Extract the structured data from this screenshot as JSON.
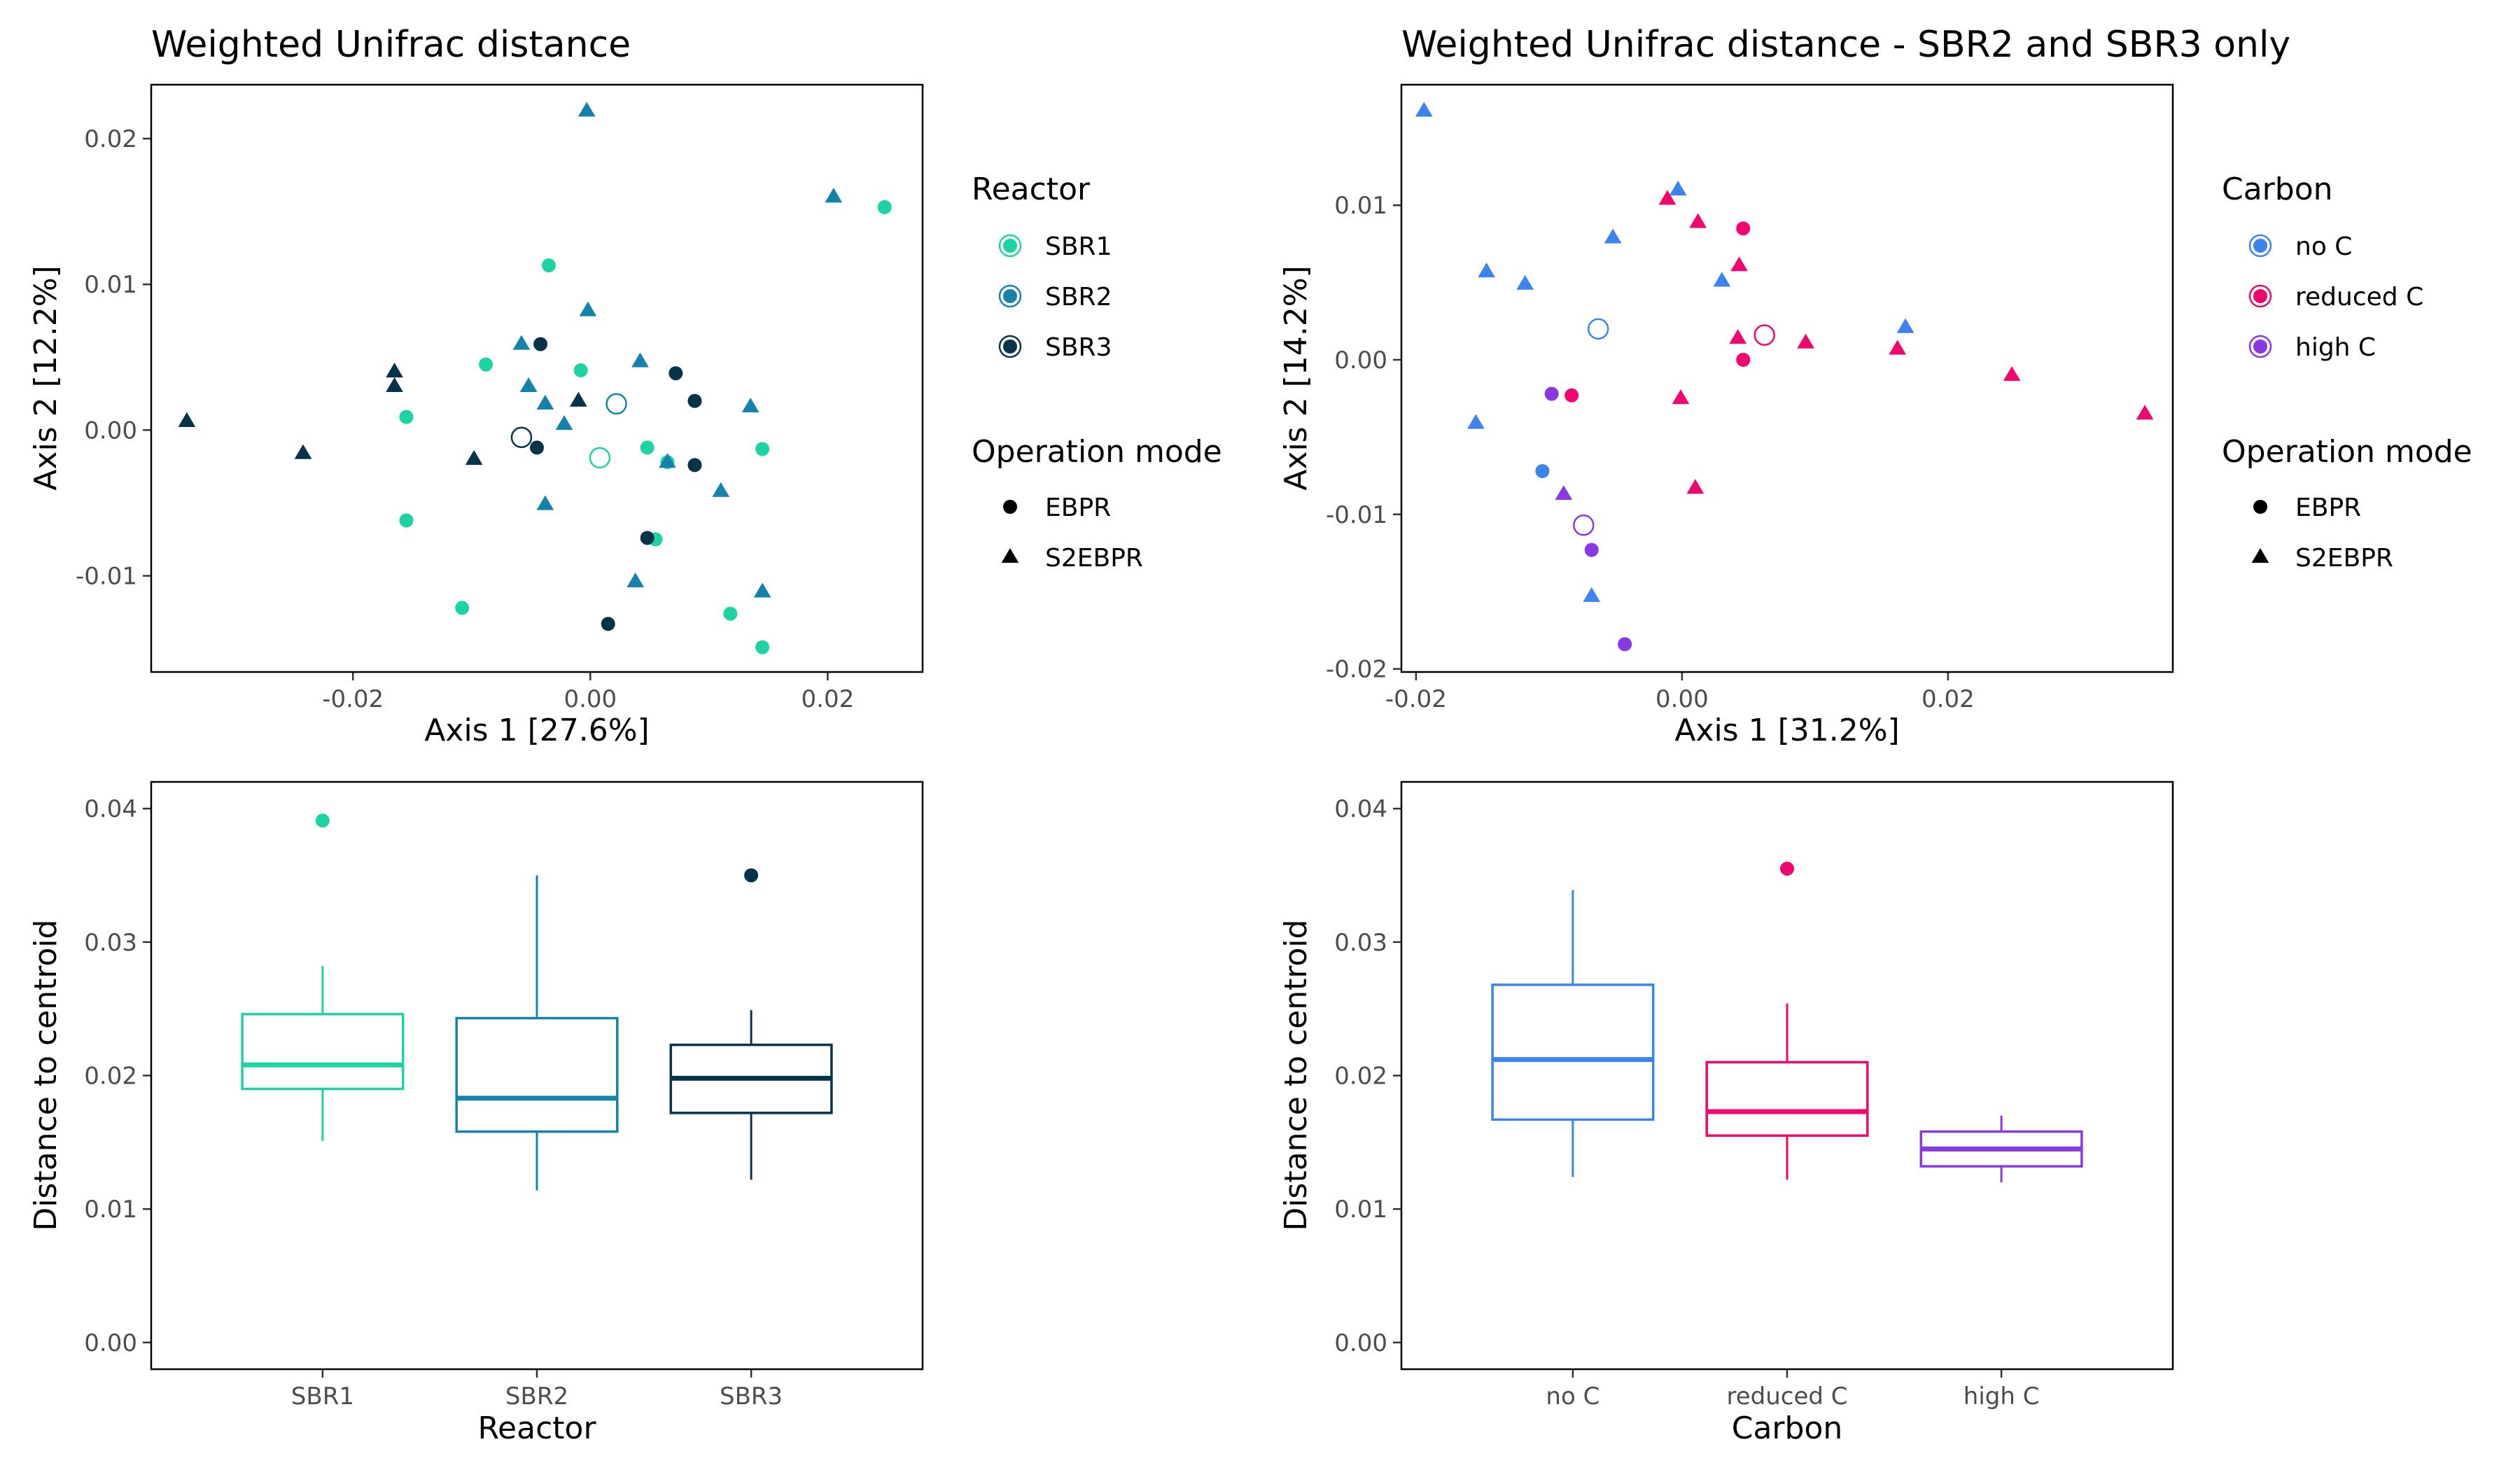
{
  "colors": {
    "SBR1": "#1ed3a3",
    "SBR2": "#1582ab",
    "SBR3": "#06334a",
    "no C": "#3b84ee",
    "reduced C": "#f1056f",
    "high C": "#8a38e2",
    "axis": "#000000",
    "tick_text": "#4d4d4d"
  },
  "chart_data": [
    {
      "type": "scatter",
      "title": "Weighted Unifrac distance",
      "xlabel": "Axis 1 [27.6%]",
      "ylabel": "Axis 2 [12.2%]",
      "xlim": [
        -0.037,
        0.028
      ],
      "ylim": [
        -0.0166,
        0.0237
      ],
      "xticks": [
        -0.02,
        0.0,
        0.02
      ],
      "xtick_labels": [
        "-0.02",
        "0.00",
        "0.02"
      ],
      "yticks": [
        -0.01,
        0.0,
        0.01,
        0.02
      ],
      "ytick_labels": [
        "-0.01",
        "0.00",
        "0.01",
        "0.02"
      ],
      "color_legend": {
        "title": "Reactor",
        "entries": [
          "SBR1",
          "SBR2",
          "SBR3"
        ]
      },
      "shape_legend": {
        "title": "Operation mode",
        "entries": [
          "EBPR",
          "S2EBPR"
        ],
        "shapes": [
          "circle",
          "triangle"
        ]
      },
      "series": [
        {
          "name": "SBR1",
          "color_key": "SBR1",
          "points": [
            {
              "x": -0.0035,
              "y": 0.0113,
              "m": "EBPR"
            },
            {
              "x": -0.0088,
              "y": 0.0045,
              "m": "EBPR"
            },
            {
              "x": -0.0155,
              "y": 0.0009,
              "m": "EBPR"
            },
            {
              "x": -0.0155,
              "y": -0.0062,
              "m": "EBPR"
            },
            {
              "x": -0.0108,
              "y": -0.0122,
              "m": "EBPR"
            },
            {
              "x": -0.0008,
              "y": 0.0041,
              "m": "EBPR"
            },
            {
              "x": 0.0048,
              "y": -0.0012,
              "m": "EBPR"
            },
            {
              "x": 0.0065,
              "y": -0.0022,
              "m": "EBPR"
            },
            {
              "x": 0.0055,
              "y": -0.0075,
              "m": "EBPR"
            },
            {
              "x": 0.0145,
              "y": -0.0013,
              "m": "EBPR"
            },
            {
              "x": 0.0118,
              "y": -0.0126,
              "m": "EBPR"
            },
            {
              "x": 0.0145,
              "y": -0.0149,
              "m": "EBPR"
            },
            {
              "x": 0.0248,
              "y": 0.0153,
              "m": "EBPR"
            }
          ],
          "centroid": {
            "x": 0.0008,
            "y": -0.0019
          }
        },
        {
          "name": "SBR2",
          "color_key": "SBR2",
          "points": [
            {
              "x": -0.0003,
              "y": 0.0219,
              "m": "S2EBPR"
            },
            {
              "x": 0.0205,
              "y": 0.016,
              "m": "S2EBPR"
            },
            {
              "x": -0.0002,
              "y": 0.0082,
              "m": "S2EBPR"
            },
            {
              "x": -0.0058,
              "y": 0.0059,
              "m": "S2EBPR"
            },
            {
              "x": 0.0042,
              "y": 0.0047,
              "m": "S2EBPR"
            },
            {
              "x": -0.0052,
              "y": 0.003,
              "m": "S2EBPR"
            },
            {
              "x": -0.0038,
              "y": 0.0018,
              "m": "S2EBPR"
            },
            {
              "x": -0.0022,
              "y": 0.0004,
              "m": "S2EBPR"
            },
            {
              "x": 0.0135,
              "y": 0.0016,
              "m": "S2EBPR"
            },
            {
              "x": 0.0065,
              "y": -0.0022,
              "m": "S2EBPR"
            },
            {
              "x": 0.011,
              "y": -0.0042,
              "m": "S2EBPR"
            },
            {
              "x": -0.0038,
              "y": -0.0051,
              "m": "S2EBPR"
            },
            {
              "x": 0.0038,
              "y": -0.0104,
              "m": "S2EBPR"
            },
            {
              "x": 0.0145,
              "y": -0.0111,
              "m": "S2EBPR"
            }
          ],
          "centroid": {
            "x": 0.0022,
            "y": 0.0018
          }
        },
        {
          "name": "SBR3",
          "color_key": "SBR3",
          "points": [
            {
              "x": -0.0042,
              "y": 0.0059,
              "m": "EBPR"
            },
            {
              "x": 0.0072,
              "y": 0.0039,
              "m": "EBPR"
            },
            {
              "x": 0.0088,
              "y": 0.002,
              "m": "EBPR"
            },
            {
              "x": -0.0045,
              "y": -0.0012,
              "m": "EBPR"
            },
            {
              "x": 0.0088,
              "y": -0.0024,
              "m": "EBPR"
            },
            {
              "x": 0.0048,
              "y": -0.0074,
              "m": "EBPR"
            },
            {
              "x": 0.0015,
              "y": -0.0133,
              "m": "EBPR"
            },
            {
              "x": -0.0165,
              "y": 0.004,
              "m": "S2EBPR"
            },
            {
              "x": -0.0165,
              "y": 0.003,
              "m": "S2EBPR"
            },
            {
              "x": -0.001,
              "y": 0.002,
              "m": "S2EBPR"
            },
            {
              "x": -0.034,
              "y": 0.0006,
              "m": "S2EBPR"
            },
            {
              "x": -0.0242,
              "y": -0.0016,
              "m": "S2EBPR"
            },
            {
              "x": -0.0098,
              "y": -0.002,
              "m": "S2EBPR"
            }
          ],
          "centroid": {
            "x": -0.0058,
            "y": -0.0005
          }
        }
      ]
    },
    {
      "type": "scatter",
      "title": "Weighted Unifrac distance - SBR2 and SBR3 only",
      "xlabel": "Axis 1 [31.2%]",
      "ylabel": "Axis 2 [14.2%]",
      "xlim": [
        -0.0211,
        0.0369
      ],
      "ylim": [
        -0.0202,
        0.0178
      ],
      "xticks": [
        -0.02,
        0.0,
        0.02
      ],
      "xtick_labels": [
        "-0.02",
        "0.00",
        "0.02"
      ],
      "yticks": [
        -0.02,
        -0.01,
        0.0,
        0.01
      ],
      "ytick_labels": [
        "-0.02",
        "-0.01",
        "0.00",
        "0.01"
      ],
      "color_legend": {
        "title": "Carbon",
        "entries": [
          "no C",
          "reduced C",
          "high C"
        ]
      },
      "shape_legend": {
        "title": "Operation mode",
        "entries": [
          "EBPR",
          "S2EBPR"
        ],
        "shapes": [
          "circle",
          "triangle"
        ]
      },
      "series": [
        {
          "name": "no C",
          "color_key": "no C",
          "points": [
            {
              "x": -0.0194,
              "y": 0.0161,
              "m": "S2EBPR"
            },
            {
              "x": -0.0003,
              "y": 0.011,
              "m": "S2EBPR"
            },
            {
              "x": -0.0052,
              "y": 0.0079,
              "m": "S2EBPR"
            },
            {
              "x": -0.0147,
              "y": 0.0057,
              "m": "S2EBPR"
            },
            {
              "x": -0.0118,
              "y": 0.0049,
              "m": "S2EBPR"
            },
            {
              "x": 0.003,
              "y": 0.0051,
              "m": "S2EBPR"
            },
            {
              "x": 0.0168,
              "y": 0.0021,
              "m": "S2EBPR"
            },
            {
              "x": -0.0155,
              "y": -0.0041,
              "m": "S2EBPR"
            },
            {
              "x": -0.0068,
              "y": -0.0153,
              "m": "S2EBPR"
            },
            {
              "x": -0.0105,
              "y": -0.0072,
              "m": "EBPR"
            }
          ],
          "centroid": {
            "x": -0.0063,
            "y": 0.002
          }
        },
        {
          "name": "reduced C",
          "color_key": "reduced C",
          "points": [
            {
              "x": -0.0011,
              "y": 0.0104,
              "m": "S2EBPR"
            },
            {
              "x": 0.0012,
              "y": 0.0089,
              "m": "S2EBPR"
            },
            {
              "x": 0.0043,
              "y": 0.0061,
              "m": "S2EBPR"
            },
            {
              "x": 0.0042,
              "y": 0.0014,
              "m": "S2EBPR"
            },
            {
              "x": 0.0093,
              "y": 0.0011,
              "m": "S2EBPR"
            },
            {
              "x": 0.0162,
              "y": 0.0007,
              "m": "S2EBPR"
            },
            {
              "x": 0.0248,
              "y": -0.001,
              "m": "S2EBPR"
            },
            {
              "x": 0.0348,
              "y": -0.0035,
              "m": "S2EBPR"
            },
            {
              "x": -0.0001,
              "y": -0.0025,
              "m": "S2EBPR"
            },
            {
              "x": 0.001,
              "y": -0.0083,
              "m": "S2EBPR"
            },
            {
              "x": 0.0046,
              "y": 0.0085,
              "m": "EBPR"
            },
            {
              "x": 0.0046,
              "y": 0.0,
              "m": "EBPR"
            },
            {
              "x": -0.0083,
              "y": -0.0023,
              "m": "EBPR"
            }
          ],
          "centroid": {
            "x": 0.0062,
            "y": 0.0016
          }
        },
        {
          "name": "high C",
          "color_key": "high C",
          "points": [
            {
              "x": -0.0098,
              "y": -0.0022,
              "m": "EBPR"
            },
            {
              "x": -0.0068,
              "y": -0.0123,
              "m": "EBPR"
            },
            {
              "x": -0.0043,
              "y": -0.0184,
              "m": "EBPR"
            },
            {
              "x": -0.0089,
              "y": -0.0087,
              "m": "S2EBPR"
            }
          ],
          "centroid": {
            "x": -0.0074,
            "y": -0.0107
          }
        }
      ]
    },
    {
      "type": "box",
      "title": "",
      "xlabel": "Reactor",
      "ylabel": "Distance to centroid",
      "ylim": [
        -0.002,
        0.042
      ],
      "yticks": [
        0.0,
        0.01,
        0.02,
        0.03,
        0.04
      ],
      "ytick_labels": [
        "0.00",
        "0.01",
        "0.02",
        "0.03",
        "0.04"
      ],
      "categories": [
        "SBR1",
        "SBR2",
        "SBR3"
      ],
      "boxes": [
        {
          "category": "SBR1",
          "color_key": "SBR1",
          "min": 0.0151,
          "q1": 0.019,
          "median": 0.0208,
          "q3": 0.0246,
          "max": 0.0282,
          "outliers": [
            0.0391
          ]
        },
        {
          "category": "SBR2",
          "color_key": "SBR2",
          "min": 0.0114,
          "q1": 0.0158,
          "median": 0.0183,
          "q3": 0.0243,
          "max": 0.035,
          "outliers": []
        },
        {
          "category": "SBR3",
          "color_key": "SBR3",
          "min": 0.0122,
          "q1": 0.0172,
          "median": 0.0198,
          "q3": 0.0223,
          "max": 0.0249,
          "outliers": [
            0.035
          ]
        }
      ]
    },
    {
      "type": "box",
      "title": "",
      "xlabel": "Carbon",
      "ylabel": "Distance to centroid",
      "ylim": [
        -0.002,
        0.042
      ],
      "yticks": [
        0.0,
        0.01,
        0.02,
        0.03,
        0.04
      ],
      "ytick_labels": [
        "0.00",
        "0.01",
        "0.02",
        "0.03",
        "0.04"
      ],
      "categories": [
        "no C",
        "reduced C",
        "high C"
      ],
      "boxes": [
        {
          "category": "no C",
          "color_key": "no C",
          "min": 0.0124,
          "q1": 0.0167,
          "median": 0.0212,
          "q3": 0.0268,
          "max": 0.0339,
          "outliers": []
        },
        {
          "category": "reduced C",
          "color_key": "reduced C",
          "min": 0.0122,
          "q1": 0.0155,
          "median": 0.0173,
          "q3": 0.021,
          "max": 0.0254,
          "outliers": [
            0.0355
          ]
        },
        {
          "category": "high C",
          "color_key": "high C",
          "min": 0.012,
          "q1": 0.0132,
          "median": 0.0145,
          "q3": 0.0158,
          "max": 0.017,
          "outliers": []
        }
      ]
    }
  ]
}
